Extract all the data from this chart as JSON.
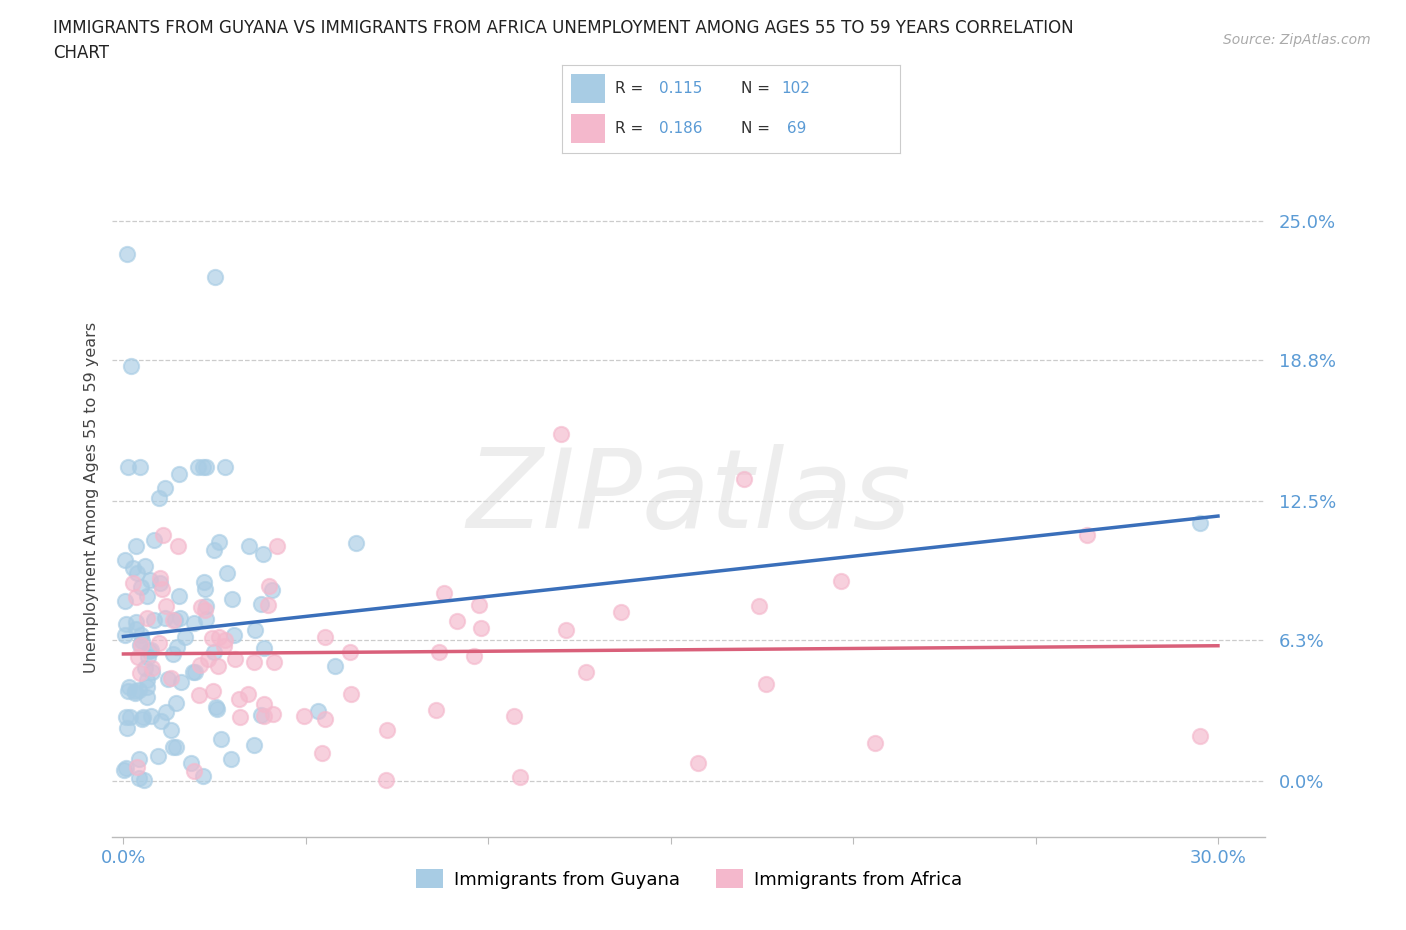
{
  "title_line1": "IMMIGRANTS FROM GUYANA VS IMMIGRANTS FROM AFRICA UNEMPLOYMENT AMONG AGES 55 TO 59 YEARS CORRELATION",
  "title_line2": "CHART",
  "source": "Source: ZipAtlas.com",
  "ylabel": "Unemployment Among Ages 55 to 59 years",
  "xlim": [
    -0.003,
    0.313
  ],
  "ylim": [
    -0.025,
    0.278
  ],
  "ytick_vals": [
    0.0,
    0.063,
    0.125,
    0.188,
    0.25
  ],
  "ytick_labels": [
    "0.0%",
    "6.3%",
    "12.5%",
    "18.8%",
    "25.0%"
  ],
  "xtick_vals": [
    0.0,
    0.05,
    0.1,
    0.15,
    0.2,
    0.25,
    0.3
  ],
  "xtick_labels": [
    "0.0%",
    "",
    "",
    "",
    "",
    "",
    "30.0%"
  ],
  "guyana_R": 0.115,
  "guyana_N": 102,
  "africa_R": 0.186,
  "africa_N": 69,
  "guyana_color": "#a8cce4",
  "africa_color": "#f4b8cc",
  "guyana_line_color": "#3a6fba",
  "africa_line_color": "#d9607a",
  "tick_color": "#5b9bd5",
  "grid_color": "#cccccc",
  "title_color": "#222222",
  "source_color": "#aaaaaa",
  "background_color": "#ffffff",
  "legend_text_color": "#5b9bd5"
}
